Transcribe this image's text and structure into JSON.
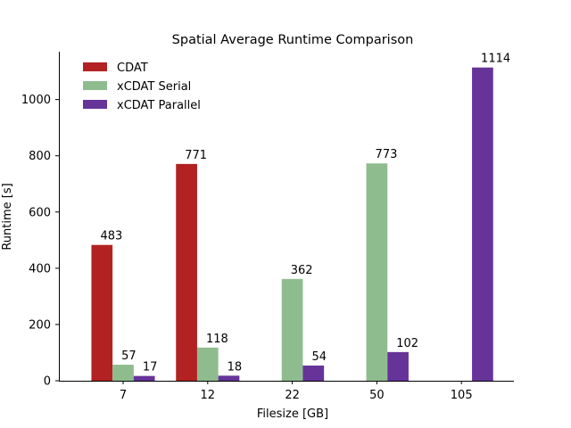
{
  "chart_data": {
    "type": "bar",
    "title": "Spatial Average Runtime Comparison",
    "xlabel": "Filesize [GB]",
    "ylabel": "Runtime [s]",
    "categories": [
      "7",
      "12",
      "22",
      "50",
      "105"
    ],
    "series": [
      {
        "name": "CDAT",
        "color": "#b22222",
        "values": [
          483,
          771,
          null,
          null,
          null
        ]
      },
      {
        "name": "xCDAT Serial",
        "color": "#8fbc8f",
        "values": [
          57,
          118,
          362,
          773,
          null
        ]
      },
      {
        "name": "xCDAT Parallel",
        "color": "#663399",
        "values": [
          17,
          18,
          54,
          102,
          1114
        ]
      }
    ],
    "data_labels": [
      [
        "483",
        "771",
        "",
        "",
        ""
      ],
      [
        "57",
        "118",
        "362",
        "773",
        ""
      ],
      [
        "17",
        "18",
        "54",
        "102",
        "1114"
      ]
    ],
    "yticks": [
      "0",
      "200",
      "400",
      "600",
      "800",
      "1000"
    ],
    "ylim": [
      0,
      1170
    ],
    "grid": false,
    "legend_position": "top-left"
  }
}
